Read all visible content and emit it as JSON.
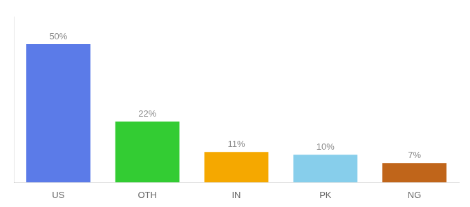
{
  "chart_data": {
    "type": "bar",
    "categories": [
      "US",
      "OTH",
      "IN",
      "PK",
      "NG"
    ],
    "values": [
      50,
      22,
      11,
      10,
      7
    ],
    "value_labels": [
      "50%",
      "22%",
      "11%",
      "10%",
      "7%"
    ],
    "colors": [
      "#5b7be8",
      "#33cc33",
      "#f5a800",
      "#87ceeb",
      "#c0651a"
    ],
    "ylim": [
      0,
      60
    ],
    "grid": false,
    "data_labels": true,
    "tick_labels": "x"
  }
}
